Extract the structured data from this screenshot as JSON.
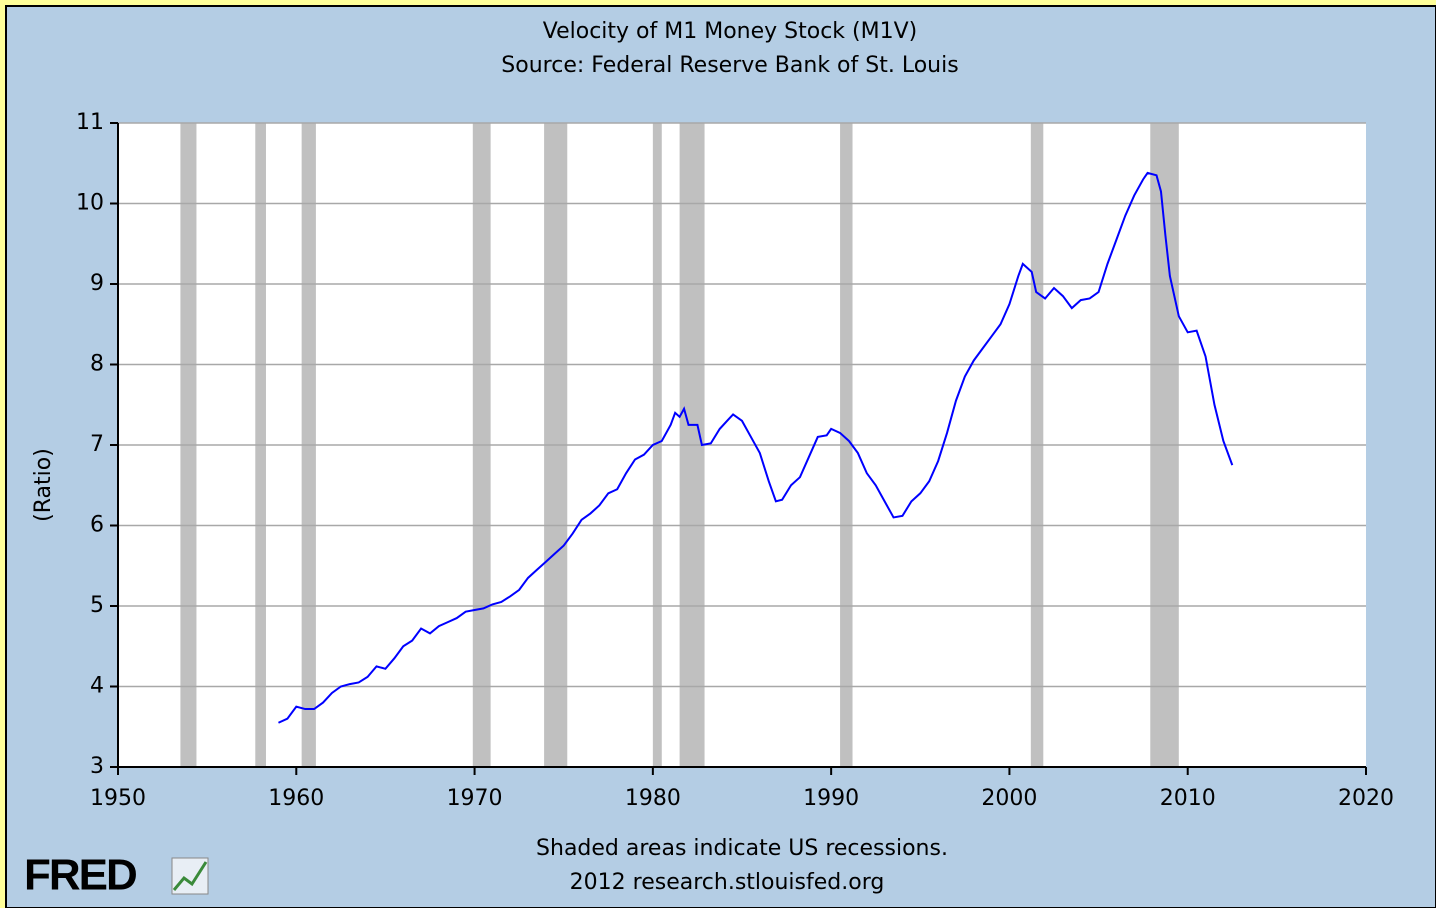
{
  "chart_data": {
    "type": "line",
    "title": "Velocity of M1 Money Stock (M1V)",
    "subtitle": "Source: Federal Reserve Bank of St. Louis",
    "y_label": "(Ratio)",
    "notes": [
      "Shaded areas indicate US recessions.",
      "2012 research.stlouisfed.org"
    ],
    "logo": "FRED",
    "xlim": [
      1950,
      2020
    ],
    "xticks": [
      1950,
      1960,
      1970,
      1980,
      1990,
      2000,
      2010,
      2020
    ],
    "ylim": [
      3,
      11
    ],
    "yticks": [
      3,
      4,
      5,
      6,
      7,
      8,
      9,
      10,
      11
    ],
    "grid": true,
    "recession_color": "#c0c0c0",
    "recessions": [
      [
        1953.5,
        1954.4
      ],
      [
        1957.7,
        1958.3
      ],
      [
        1960.3,
        1961.1
      ],
      [
        1969.9,
        1970.9
      ],
      [
        1973.9,
        1975.2
      ],
      [
        1980.0,
        1980.5
      ],
      [
        1981.5,
        1982.9
      ],
      [
        1990.5,
        1991.2
      ],
      [
        2001.2,
        2001.9
      ],
      [
        2007.9,
        2009.5
      ]
    ],
    "series": [
      {
        "name": "M1V",
        "color": "#0000ff",
        "x": [
          1959.0,
          1959.5,
          1960.0,
          1960.5,
          1961.0,
          1961.5,
          1962.0,
          1962.5,
          1963.0,
          1963.5,
          1964.0,
          1964.5,
          1965.0,
          1965.5,
          1966.0,
          1966.5,
          1967.0,
          1967.5,
          1968.0,
          1968.5,
          1969.0,
          1969.5,
          1970.0,
          1970.5,
          1971.0,
          1971.5,
          1972.0,
          1972.5,
          1973.0,
          1973.5,
          1974.0,
          1974.5,
          1975.0,
          1975.5,
          1976.0,
          1976.5,
          1977.0,
          1977.5,
          1978.0,
          1978.5,
          1979.0,
          1979.5,
          1980.0,
          1980.5,
          1981.0,
          1981.25,
          1981.5,
          1981.75,
          1982.0,
          1982.5,
          1982.75,
          1983.25,
          1983.75,
          1984.25,
          1984.5,
          1985.0,
          1985.5,
          1986.0,
          1986.5,
          1986.9,
          1987.25,
          1987.75,
          1988.25,
          1988.75,
          1989.25,
          1989.75,
          1990.0,
          1990.5,
          1991.0,
          1991.5,
          1992.0,
          1992.5,
          1993.0,
          1993.5,
          1994.0,
          1994.5,
          1995.0,
          1995.5,
          1996.0,
          1996.5,
          1997.0,
          1997.5,
          1998.0,
          1998.5,
          1999.0,
          1999.5,
          2000.0,
          2000.5,
          2000.75,
          2001.25,
          2001.5,
          2002.0,
          2002.5,
          2003.0,
          2003.5,
          2004.0,
          2004.5,
          2005.0,
          2005.5,
          2006.0,
          2006.5,
          2007.0,
          2007.5,
          2007.75,
          2008.25,
          2008.5,
          2008.75,
          2009.0,
          2009.5,
          2010.0,
          2010.5,
          2011.0,
          2011.5,
          2012.0,
          2012.5
        ],
        "values": [
          3.55,
          3.6,
          3.75,
          3.72,
          3.72,
          3.8,
          3.92,
          4.0,
          4.03,
          4.05,
          4.12,
          4.25,
          4.22,
          4.35,
          4.5,
          4.57,
          4.72,
          4.66,
          4.75,
          4.8,
          4.85,
          4.93,
          4.95,
          4.97,
          5.02,
          5.05,
          5.12,
          5.2,
          5.35,
          5.45,
          5.55,
          5.65,
          5.75,
          5.9,
          6.07,
          6.15,
          6.25,
          6.4,
          6.45,
          6.65,
          6.82,
          6.88,
          7.0,
          7.05,
          7.25,
          7.4,
          7.35,
          7.45,
          7.25,
          7.25,
          7.0,
          7.02,
          7.2,
          7.32,
          7.38,
          7.3,
          7.1,
          6.9,
          6.55,
          6.3,
          6.32,
          6.5,
          6.6,
          6.85,
          7.1,
          7.12,
          7.2,
          7.15,
          7.05,
          6.9,
          6.65,
          6.5,
          6.3,
          6.1,
          6.12,
          6.3,
          6.4,
          6.55,
          6.8,
          7.15,
          7.55,
          7.85,
          8.05,
          8.2,
          8.35,
          8.5,
          8.75,
          9.1,
          9.25,
          9.15,
          8.9,
          8.82,
          8.95,
          8.85,
          8.7,
          8.8,
          8.82,
          8.9,
          9.25,
          9.55,
          9.85,
          10.1,
          10.3,
          10.38,
          10.35,
          10.15,
          9.6,
          9.1,
          8.6,
          8.4,
          8.42,
          8.1,
          7.5,
          7.05,
          6.75
        ]
      }
    ]
  }
}
